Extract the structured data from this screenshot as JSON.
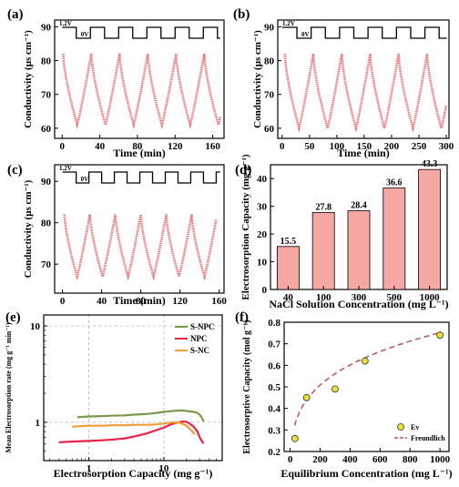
{
  "chart_data": [
    {
      "id": "a",
      "panel_label": "(a)",
      "type": "line",
      "ylabel": "Conductivity (μs cm⁻¹)",
      "xlabel": "Time (min)",
      "xlim": [
        -8,
        172
      ],
      "ylim": [
        57,
        92
      ],
      "xticks": [
        0,
        40,
        80,
        120,
        160
      ],
      "yticks": [
        60,
        70,
        80,
        90
      ],
      "voltage_labels": [
        "1.2V",
        "0V"
      ],
      "voltage_steps": {
        "start": 15,
        "period": 30,
        "high_frac": 0.5
      },
      "series": [
        {
          "color": "#e0505a",
          "t0": 1,
          "period": 30,
          "min": 61,
          "max": 82,
          "t_end": 168
        }
      ]
    },
    {
      "id": "b",
      "panel_label": "(b)",
      "type": "line",
      "ylabel": "Conductivity (μs cm⁻¹)",
      "xlabel": "Time (min)",
      "xlim": [
        -8,
        305
      ],
      "ylim": [
        57,
        92
      ],
      "xticks": [
        0,
        50,
        100,
        150,
        200,
        250,
        300
      ],
      "yticks": [
        60,
        70,
        80,
        90
      ],
      "voltage_labels": [
        "1.2V",
        "0V"
      ],
      "voltage_steps": {
        "start": 27,
        "period": 52,
        "high_frac": 0.5
      },
      "series": [
        {
          "color": "#e0505a",
          "t0": 5,
          "period": 52,
          "min": 60,
          "max": 82,
          "t_end": 300
        }
      ]
    },
    {
      "id": "c",
      "panel_label": "(c)",
      "type": "line",
      "ylabel": "Conductivity (μs cm⁻¹)",
      "xlabel": "Time (min)",
      "xlim": [
        -8,
        165
      ],
      "ylim": [
        63,
        94
      ],
      "xticks": [
        0,
        40,
        80,
        120,
        160
      ],
      "yticks": [
        70,
        80,
        90
      ],
      "voltage_labels": [
        "1.2V",
        "0V"
      ],
      "voltage_steps": {
        "start": 14,
        "period": 26,
        "high_frac": 0.5
      },
      "series": [
        {
          "color": "#e0505a",
          "t0": 2,
          "period": 26,
          "min": 67,
          "max": 82,
          "t_end": 157
        }
      ]
    },
    {
      "id": "d",
      "panel_label": "(d)",
      "type": "bar",
      "ylabel": "Electrosorption Capacity (mg g⁻¹)",
      "xlabel": "NaCl Solution Concentration (mg L⁻¹)",
      "categories": [
        "40",
        "100",
        "300",
        "500",
        "1000"
      ],
      "values": [
        15.5,
        27.8,
        28.4,
        36.6,
        43.3
      ],
      "value_labels": [
        "15.5",
        "27.8",
        "28.4",
        "36.6",
        "43.3"
      ],
      "ylim": [
        0,
        45
      ],
      "yticks": [
        0,
        10,
        20,
        30,
        40
      ],
      "bar_color": "#f4a7a3"
    },
    {
      "id": "e",
      "panel_label": "(e)",
      "type": "line",
      "ylabel": "Mean Electrosorption rate (mg g⁻¹ min⁻¹)",
      "xlabel": "Electrosorption Capacity (mg g⁻¹)",
      "xscale": "log",
      "yscale": "log",
      "xlim": [
        0.25,
        60
      ],
      "ylim": [
        0.4,
        13
      ],
      "xticks": [
        1,
        10
      ],
      "yticks": [
        1,
        10
      ],
      "grid": true,
      "legend_position": "top-right",
      "series": [
        {
          "name": "S-NPC",
          "color": "#7a9a4a",
          "x": [
            0.7,
            1.0,
            1.5,
            2,
            3,
            4,
            5,
            6,
            8,
            10,
            12,
            15,
            18,
            20,
            25,
            28,
            30,
            32,
            34
          ],
          "y": [
            1.13,
            1.15,
            1.16,
            1.17,
            1.18,
            1.2,
            1.21,
            1.22,
            1.25,
            1.28,
            1.3,
            1.32,
            1.33,
            1.31,
            1.28,
            1.25,
            1.2,
            1.12,
            1.02
          ]
        },
        {
          "name": "NPC",
          "color": "#e8234a",
          "x": [
            0.4,
            0.6,
            1.0,
            1.5,
            2,
            3,
            4,
            5,
            6,
            7,
            8,
            10,
            12,
            14,
            16,
            18,
            20,
            22,
            25,
            28,
            30,
            32,
            34
          ],
          "y": [
            0.62,
            0.63,
            0.64,
            0.65,
            0.66,
            0.68,
            0.71,
            0.74,
            0.77,
            0.8,
            0.83,
            0.88,
            0.94,
            0.98,
            1.0,
            1.02,
            1.01,
            0.97,
            0.9,
            0.8,
            0.7,
            0.64,
            0.6
          ]
        },
        {
          "name": "S-NC",
          "color": "#f29c38",
          "x": [
            0.6,
            0.8,
            1.0,
            1.5,
            2,
            3,
            4,
            5,
            6,
            8,
            10,
            12,
            14,
            16,
            18,
            20,
            22,
            24,
            26
          ],
          "y": [
            0.9,
            0.91,
            0.92,
            0.92,
            0.93,
            0.93,
            0.94,
            0.94,
            0.94,
            0.95,
            0.97,
            0.99,
            1.0,
            0.99,
            0.96,
            0.92,
            0.86,
            0.8,
            0.75
          ]
        }
      ]
    },
    {
      "id": "f",
      "panel_label": "(f)",
      "type": "scatter",
      "ylabel": "Electrosorptive Capacity (mol g⁻¹)",
      "xlabel": "Equilibrium Concentration (mg L⁻¹)",
      "xlim": [
        -40,
        1060
      ],
      "ylim": [
        0.2,
        0.8
      ],
      "xticks": [
        0,
        200,
        400,
        600,
        800,
        1000
      ],
      "yticks": [
        0.2,
        0.3,
        0.4,
        0.5,
        0.6,
        0.7,
        0.8
      ],
      "legend_position": "bottom-right",
      "series": [
        {
          "name": "Ev",
          "kind": "points",
          "color": "#e8e23a",
          "edge": "#333333",
          "x": [
            32,
            110,
            300,
            500,
            1000
          ],
          "y": [
            0.26,
            0.45,
            0.49,
            0.62,
            0.74
          ]
        },
        {
          "name": "Freundlich",
          "kind": "fit",
          "color": "#c0505a",
          "K": 0.14,
          "n": 4.11
        }
      ]
    }
  ]
}
